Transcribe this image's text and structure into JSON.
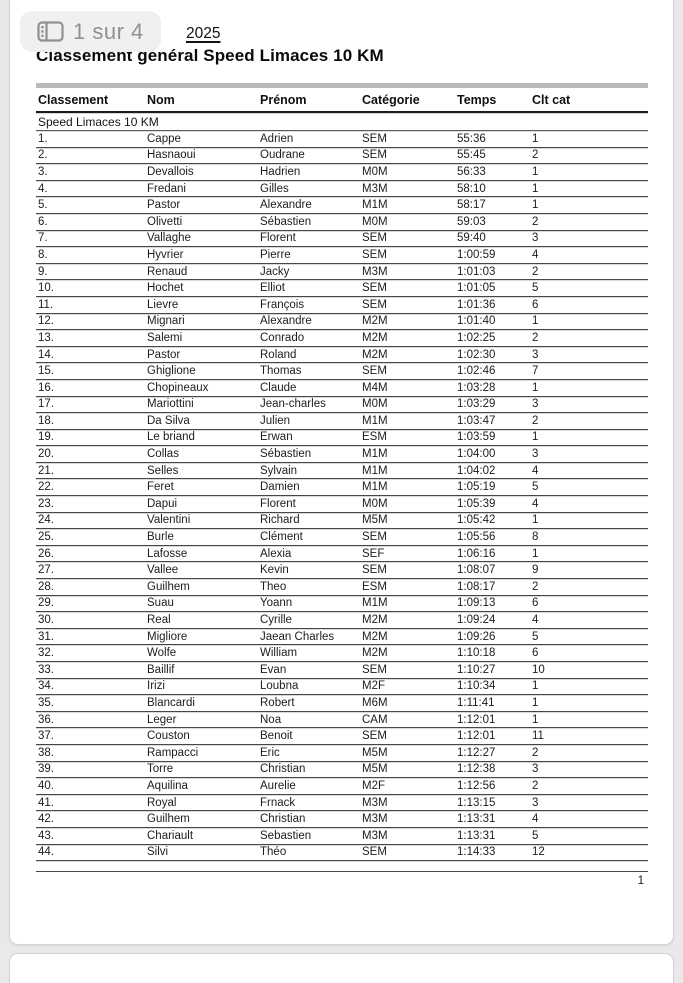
{
  "viewer": {
    "page_badge": {
      "label": "1 sur 4",
      "icon": "page-thumbnails-icon"
    },
    "colors": {
      "badge_bg": "#f1f0f1",
      "badge_fg": "#8f8f94",
      "viewer_bg": "#e9e9ec",
      "page_bg": "#ffffff",
      "table_top_bar": "#b9b9bb",
      "header_rule": "#1c1c1c",
      "row_rule": "#474747"
    }
  },
  "document": {
    "header_link": "2025",
    "title": "Classement général Speed Limaces 10 KM",
    "footer_page_number": "1",
    "table": {
      "columns": [
        "Classement",
        "Nom",
        "Prénom",
        "Catégorie",
        "Temps",
        "Clt cat"
      ],
      "section_label": "Speed Limaces 10 KM",
      "rows": [
        [
          "1.",
          "Cappe",
          "Adrien",
          "SEM",
          "55:36",
          "1"
        ],
        [
          "2.",
          "Hasnaoui",
          "Oudrane",
          "SEM",
          "55:45",
          "2"
        ],
        [
          "3.",
          "Devallois",
          "Hadrien",
          "M0M",
          "56:33",
          "1"
        ],
        [
          "4.",
          "Fredani",
          "Gilles",
          "M3M",
          "58:10",
          "1"
        ],
        [
          "5.",
          "Pastor",
          "Alexandre",
          "M1M",
          "58:17",
          "1"
        ],
        [
          "6.",
          "Olivetti",
          "Sébastien",
          "M0M",
          "59:03",
          "2"
        ],
        [
          "7.",
          "Vallaghe",
          "Florent",
          "SEM",
          "59:40",
          "3"
        ],
        [
          "8.",
          "Hyvrier",
          "Pierre",
          "SEM",
          "1:00:59",
          "4"
        ],
        [
          "9.",
          "Renaud",
          "Jacky",
          "M3M",
          "1:01:03",
          "2"
        ],
        [
          "10.",
          "Hochet",
          "Elliot",
          "SEM",
          "1:01:05",
          "5"
        ],
        [
          "11.",
          "Lievre",
          "François",
          "SEM",
          "1:01:36",
          "6"
        ],
        [
          "12.",
          "Mignari",
          "Alexandre",
          "M2M",
          "1:01:40",
          "1"
        ],
        [
          "13.",
          "Salemi",
          "Conrado",
          "M2M",
          "1:02:25",
          "2"
        ],
        [
          "14.",
          "Pastor",
          "Roland",
          "M2M",
          "1:02:30",
          "3"
        ],
        [
          "15.",
          "Ghiglione",
          "Thomas",
          "SEM",
          "1:02:46",
          "7"
        ],
        [
          "16.",
          "Chopineaux",
          "Claude",
          "M4M",
          "1:03:28",
          "1"
        ],
        [
          "17.",
          "Mariottini",
          "Jean-charles",
          "M0M",
          "1:03:29",
          "3"
        ],
        [
          "18.",
          "Da Silva",
          "Julien",
          "M1M",
          "1:03:47",
          "2"
        ],
        [
          "19.",
          "Le briand",
          "Erwan",
          "ESM",
          "1:03:59",
          "1"
        ],
        [
          "20.",
          "Collas",
          "Sébastien",
          "M1M",
          "1:04:00",
          "3"
        ],
        [
          "21.",
          "Selles",
          "Sylvain",
          "M1M",
          "1:04:02",
          "4"
        ],
        [
          "22.",
          "Feret",
          "Damien",
          "M1M",
          "1:05:19",
          "5"
        ],
        [
          "23.",
          "Dapui",
          "Florent",
          "M0M",
          "1:05:39",
          "4"
        ],
        [
          "24.",
          "Valentini",
          "Richard",
          "M5M",
          "1:05:42",
          "1"
        ],
        [
          "25.",
          "Burle",
          "Clément",
          "SEM",
          "1:05:56",
          "8"
        ],
        [
          "26.",
          "Lafosse",
          "Alexia",
          "SEF",
          "1:06:16",
          "1"
        ],
        [
          "27.",
          "Vallee",
          "Kevin",
          "SEM",
          "1:08:07",
          "9"
        ],
        [
          "28.",
          "Guilhem",
          "Theo",
          "ESM",
          "1:08:17",
          "2"
        ],
        [
          "29.",
          "Suau",
          "Yoann",
          "M1M",
          "1:09:13",
          "6"
        ],
        [
          "30.",
          "Real",
          "Cyrille",
          "M2M",
          "1:09:24",
          "4"
        ],
        [
          "31.",
          "Migliore",
          "Jaean Charles",
          "M2M",
          "1:09:26",
          "5"
        ],
        [
          "32.",
          "Wolfe",
          "William",
          "M2M",
          "1:10:18",
          "6"
        ],
        [
          "33.",
          "Baillif",
          "Evan",
          "SEM",
          "1:10:27",
          "10"
        ],
        [
          "34.",
          "Irizi",
          "Loubna",
          "M2F",
          "1:10:34",
          "1"
        ],
        [
          "35.",
          "Blancardi",
          "Robert",
          "M6M",
          "1:11:41",
          "1"
        ],
        [
          "36.",
          "Leger",
          "Noa",
          "CAM",
          "1:12:01",
          "1"
        ],
        [
          "37.",
          "Couston",
          "Benoit",
          "SEM",
          "1:12:01",
          "11"
        ],
        [
          "38.",
          "Rampacci",
          "Eric",
          "M5M",
          "1:12:27",
          "2"
        ],
        [
          "39.",
          "Torre",
          "Christian",
          "M5M",
          "1:12:38",
          "3"
        ],
        [
          "40.",
          "Aquilina",
          "Aurelie",
          "M2F",
          "1:12:56",
          "2"
        ],
        [
          "41.",
          "Royal",
          "Frnack",
          "M3M",
          "1:13:15",
          "3"
        ],
        [
          "42.",
          "Guilhem",
          "Christian",
          "M3M",
          "1:13:31",
          "4"
        ],
        [
          "43.",
          "Chariault",
          "Sebastien",
          "M3M",
          "1:13:31",
          "5"
        ],
        [
          "44.",
          "Silvi",
          "Théo",
          "SEM",
          "1:14:33",
          "12"
        ]
      ]
    }
  }
}
